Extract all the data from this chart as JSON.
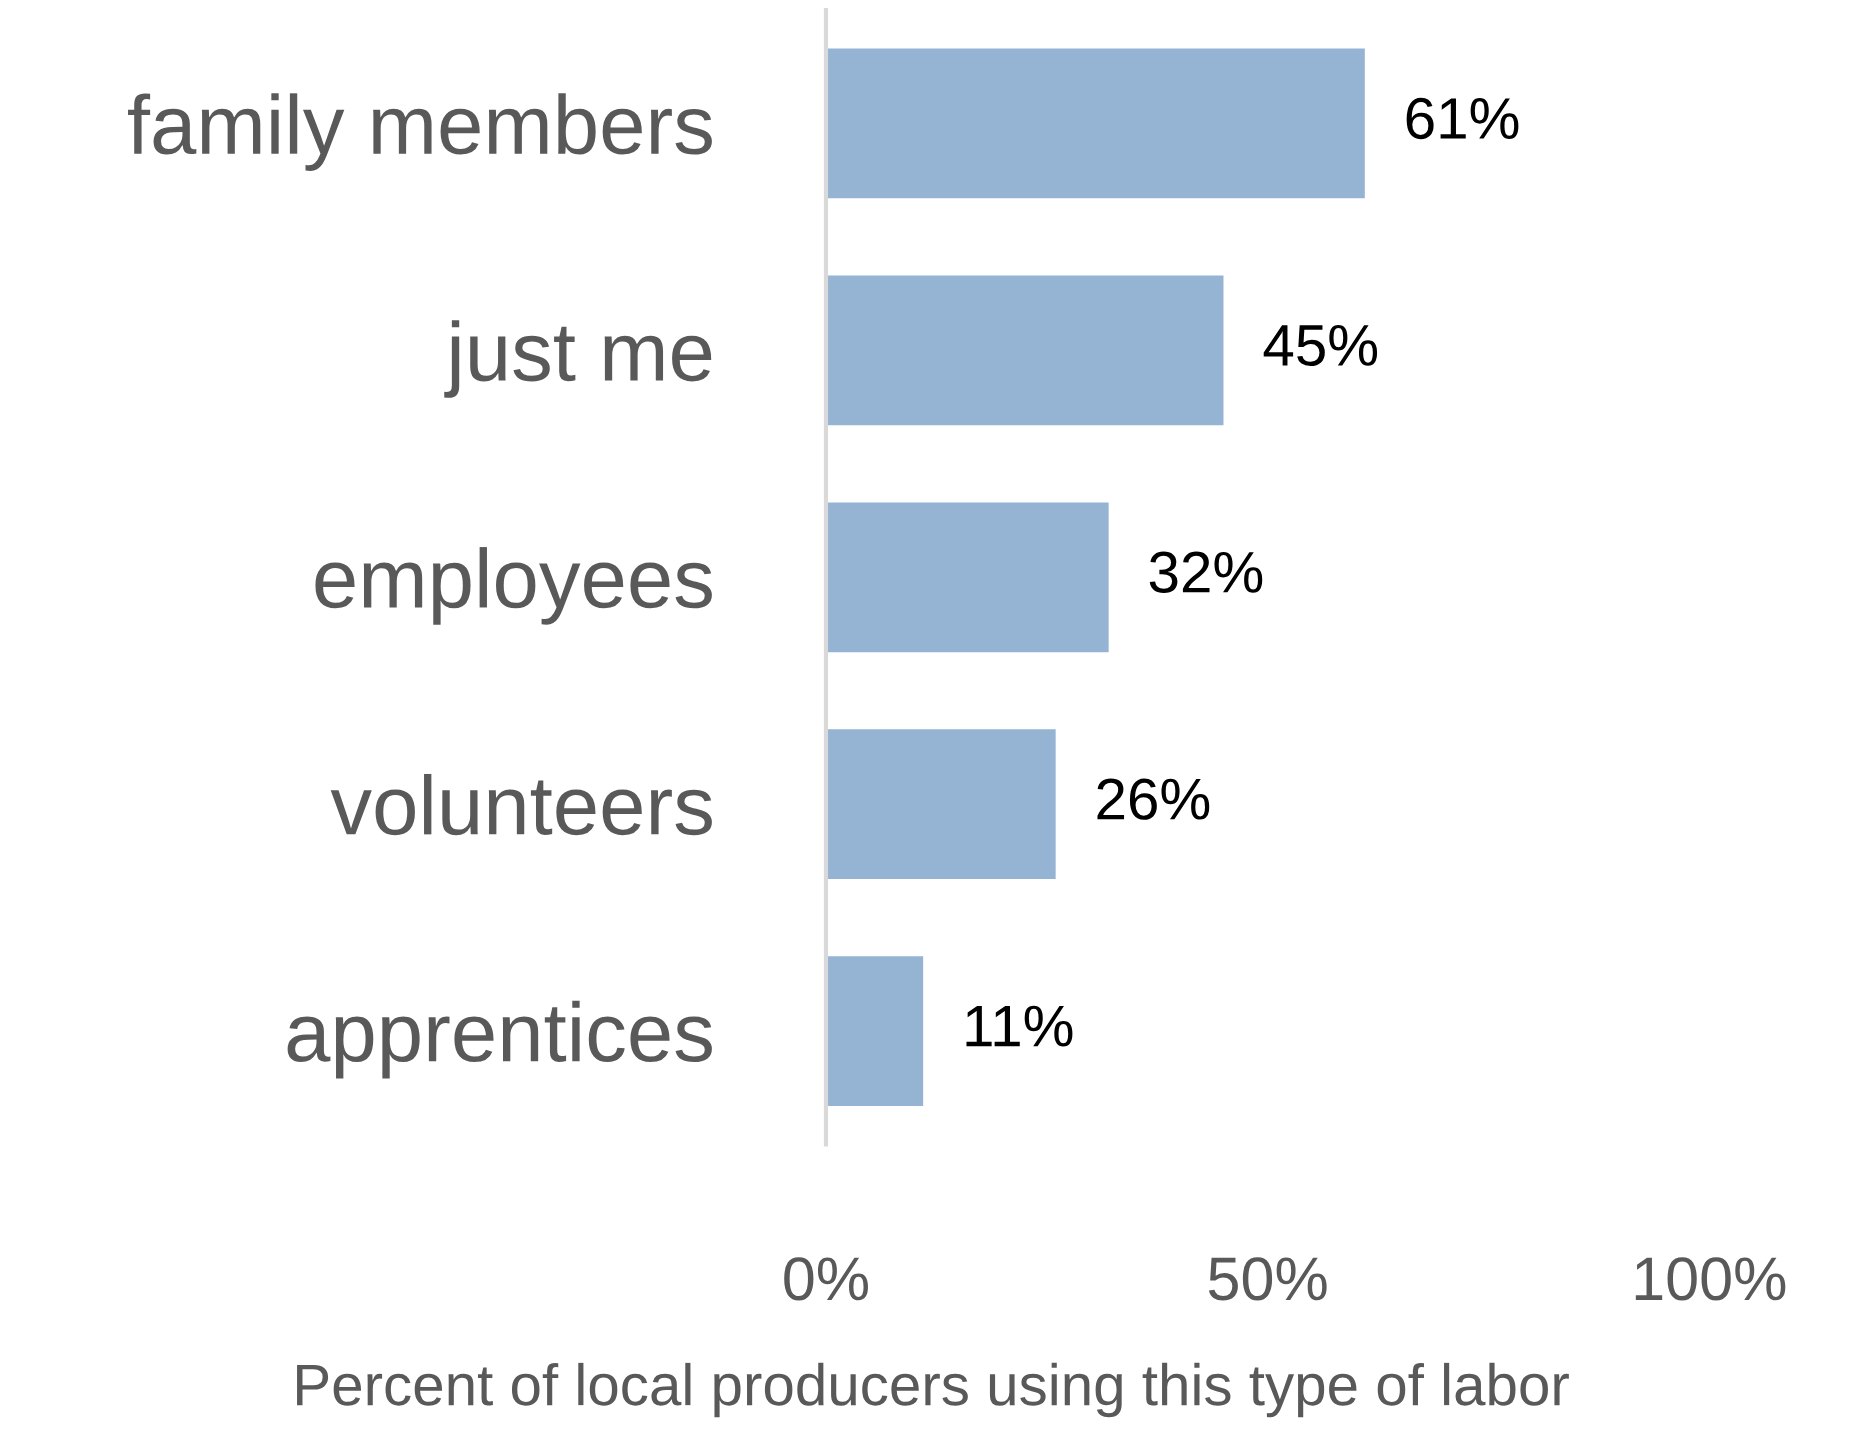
{
  "chart_data": {
    "type": "bar",
    "orientation": "horizontal",
    "xlabel": "Percent of local producers using this type of labor",
    "categories": [
      "family members",
      "just me",
      "employees",
      "volunteers",
      "apprentices"
    ],
    "values": [
      61,
      45,
      32,
      26,
      11
    ],
    "value_labels": [
      "61%",
      "45%",
      "32%",
      "26%",
      "11%"
    ],
    "color": "#95b3d3",
    "xlim": [
      0,
      100
    ],
    "xticks": [
      {
        "value": 0,
        "label": "0%"
      },
      {
        "value": 50,
        "label": "50%"
      },
      {
        "value": 100,
        "label": "100%"
      }
    ],
    "grid": false,
    "legend": false
  }
}
